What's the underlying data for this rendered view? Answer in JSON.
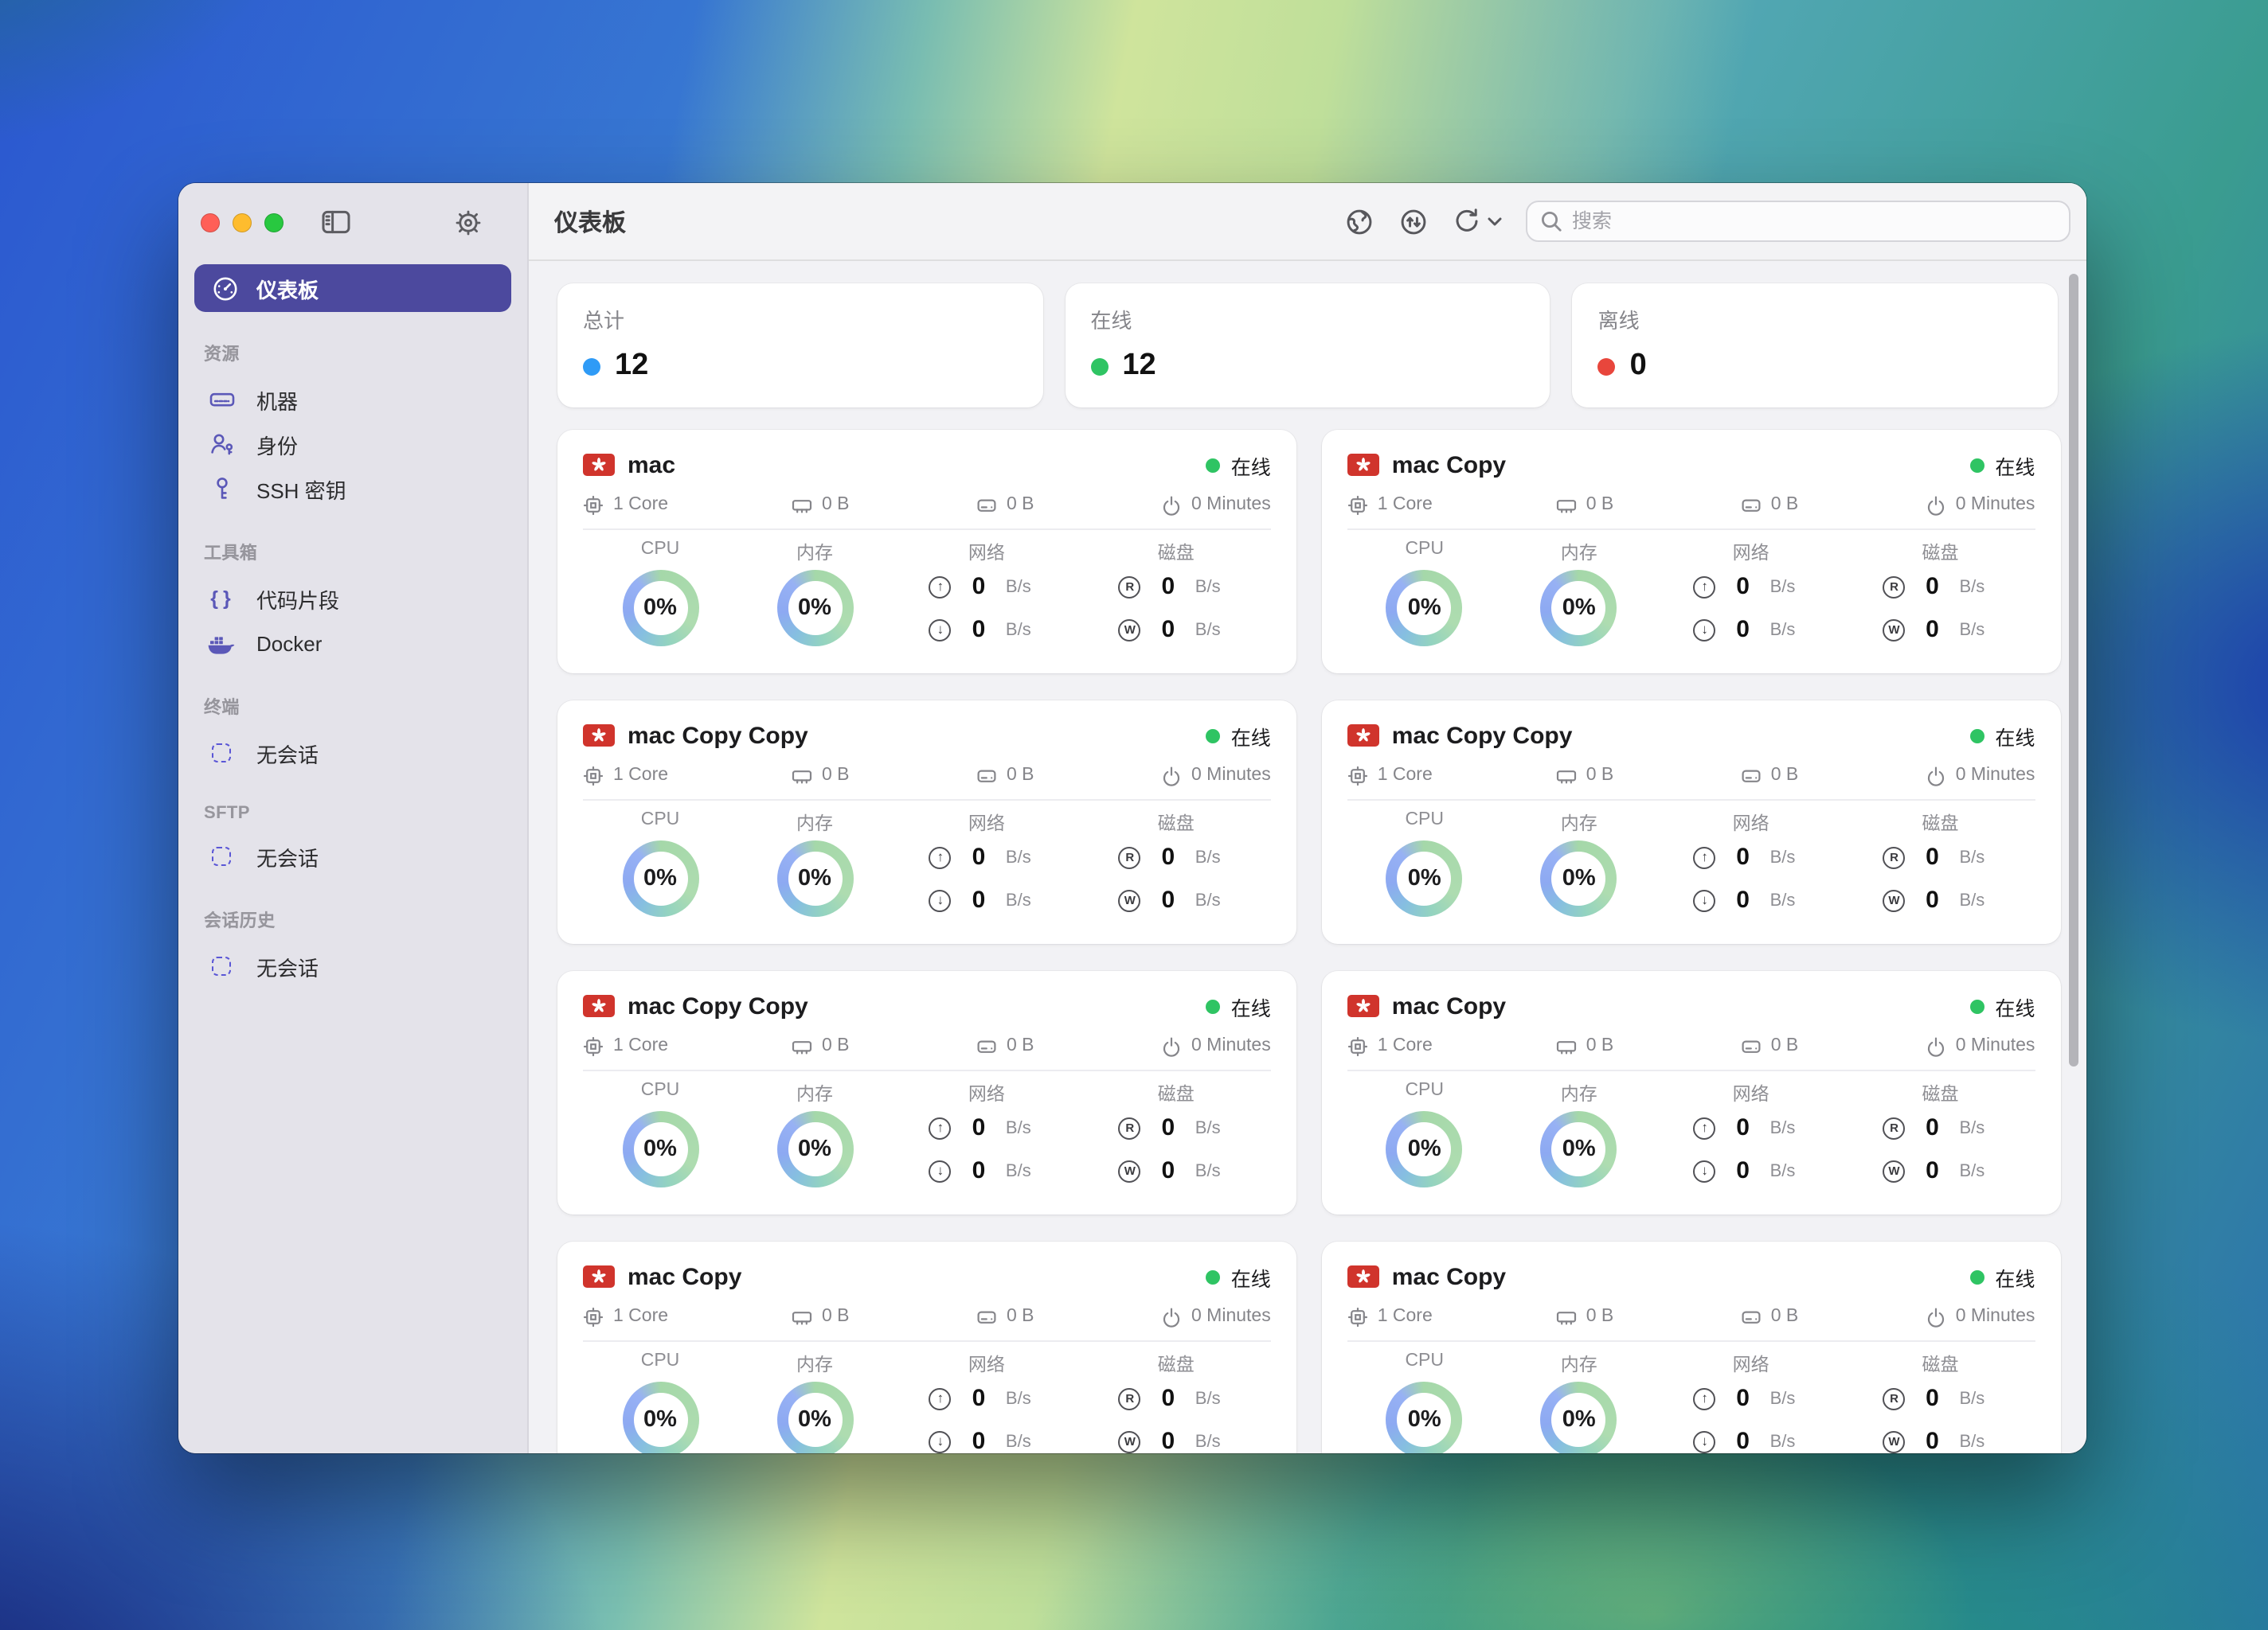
{
  "colors": {
    "accent": "#4c499e",
    "online": "#2fc463",
    "ring_green": "#a5d8a9",
    "ring_teal": "#93d3c0",
    "ring_blue": "#8da9f2",
    "traffic_close": "#ff5f57",
    "traffic_minimize": "#febc2e",
    "traffic_zoom": "#28c840"
  },
  "sidebar": {
    "selected": {
      "icon": "dashboard-icon",
      "label": "仪表板"
    },
    "sections": [
      {
        "label": "资源",
        "items": [
          {
            "icon": "server-icon",
            "label": "机器"
          },
          {
            "icon": "identity-icon",
            "label": "身份"
          },
          {
            "icon": "key-icon",
            "label": "SSH 密钥"
          }
        ]
      },
      {
        "label": "工具箱",
        "items": [
          {
            "icon": "braces-icon",
            "label": "代码片段"
          },
          {
            "icon": "docker-icon",
            "label": "Docker"
          }
        ]
      },
      {
        "label": "终端",
        "items": [
          {
            "icon": "session-icon",
            "label": "无会话"
          }
        ]
      },
      {
        "label": "SFTP",
        "items": [
          {
            "icon": "session-icon",
            "label": "无会话"
          }
        ]
      },
      {
        "label": "会话历史",
        "items": [
          {
            "icon": "session-icon",
            "label": "无会话"
          }
        ]
      }
    ]
  },
  "toolbar": {
    "title": "仪表板",
    "search_placeholder": "搜索",
    "search_value": ""
  },
  "stats": [
    {
      "label": "总计",
      "value": "12",
      "color": "#2f9bf6"
    },
    {
      "label": "在线",
      "value": "12",
      "color": "#2fc463"
    },
    {
      "label": "离线",
      "value": "0",
      "color": "#e8463c"
    }
  ],
  "card_labels": {
    "cpu": "CPU",
    "memory": "内存",
    "network": "网络",
    "disk": "磁盘",
    "unit": "B/s",
    "up": "↑",
    "down": "↓",
    "read": "R",
    "write": "W"
  },
  "machines": [
    {
      "name": "mac",
      "status": "在线",
      "cores": "1 Core",
      "memory": "0 B",
      "disk": "0 B",
      "uptime": "0 Minutes",
      "cpu_percent": "0%",
      "memory_percent": "0%",
      "net_up": "0",
      "net_down": "0",
      "disk_read": "0",
      "disk_write": "0"
    },
    {
      "name": "mac Copy",
      "status": "在线",
      "cores": "1 Core",
      "memory": "0 B",
      "disk": "0 B",
      "uptime": "0 Minutes",
      "cpu_percent": "0%",
      "memory_percent": "0%",
      "net_up": "0",
      "net_down": "0",
      "disk_read": "0",
      "disk_write": "0"
    },
    {
      "name": "mac Copy Copy",
      "status": "在线",
      "cores": "1 Core",
      "memory": "0 B",
      "disk": "0 B",
      "uptime": "0 Minutes",
      "cpu_percent": "0%",
      "memory_percent": "0%",
      "net_up": "0",
      "net_down": "0",
      "disk_read": "0",
      "disk_write": "0"
    },
    {
      "name": "mac Copy Copy",
      "status": "在线",
      "cores": "1 Core",
      "memory": "0 B",
      "disk": "0 B",
      "uptime": "0 Minutes",
      "cpu_percent": "0%",
      "memory_percent": "0%",
      "net_up": "0",
      "net_down": "0",
      "disk_read": "0",
      "disk_write": "0"
    },
    {
      "name": "mac Copy Copy",
      "status": "在线",
      "cores": "1 Core",
      "memory": "0 B",
      "disk": "0 B",
      "uptime": "0 Minutes",
      "cpu_percent": "0%",
      "memory_percent": "0%",
      "net_up": "0",
      "net_down": "0",
      "disk_read": "0",
      "disk_write": "0"
    },
    {
      "name": "mac Copy",
      "status": "在线",
      "cores": "1 Core",
      "memory": "0 B",
      "disk": "0 B",
      "uptime": "0 Minutes",
      "cpu_percent": "0%",
      "memory_percent": "0%",
      "net_up": "0",
      "net_down": "0",
      "disk_read": "0",
      "disk_write": "0"
    },
    {
      "name": "mac Copy",
      "status": "在线",
      "cores": "1 Core",
      "memory": "0 B",
      "disk": "0 B",
      "uptime": "0 Minutes",
      "cpu_percent": "0%",
      "memory_percent": "0%",
      "net_up": "0",
      "net_down": "0",
      "disk_read": "0",
      "disk_write": "0"
    },
    {
      "name": "mac Copy",
      "status": "在线",
      "cores": "1 Core",
      "memory": "0 B",
      "disk": "0 B",
      "uptime": "0 Minutes",
      "cpu_percent": "0%",
      "memory_percent": "0%",
      "net_up": "0",
      "net_down": "0",
      "disk_read": "0",
      "disk_write": "0"
    }
  ]
}
